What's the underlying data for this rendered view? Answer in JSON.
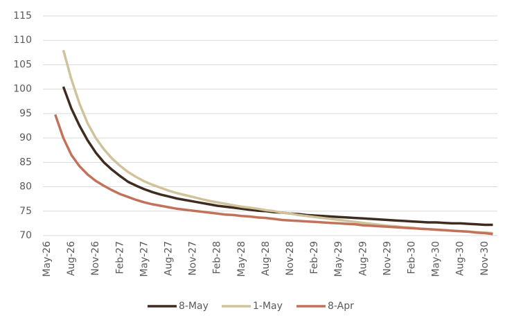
{
  "chart_data": {
    "type": "line",
    "categories": [
      "May-26",
      null,
      null,
      "Aug-26",
      null,
      null,
      "Nov-26",
      null,
      null,
      "Feb-27",
      null,
      null,
      "May-27",
      null,
      null,
      "Aug-27",
      null,
      null,
      "Nov-27",
      null,
      null,
      "Feb-28",
      null,
      null,
      "May-28",
      null,
      null,
      "Aug-28",
      null,
      null,
      "Nov-28",
      null,
      null,
      "Feb-29",
      null,
      null,
      "May-29",
      null,
      null,
      "Aug-29",
      null,
      null,
      "Nov-29",
      null,
      null,
      "Feb-30",
      null,
      null,
      "May-30",
      null,
      null,
      "Aug-30",
      null,
      null,
      "Nov-30",
      null
    ],
    "series": [
      {
        "name": "8-May",
        "color": "#3e2c20",
        "values": [
          null,
          null,
          100.5,
          96,
          92.5,
          89.5,
          87,
          85,
          83.5,
          82.2,
          81,
          80.2,
          79.5,
          78.9,
          78.4,
          78,
          77.6,
          77.3,
          77,
          76.7,
          76.4,
          76.1,
          75.9,
          75.7,
          75.5,
          75.3,
          75.1,
          75,
          74.8,
          74.7,
          74.5,
          74.4,
          74.2,
          74.1,
          74,
          73.9,
          73.8,
          73.7,
          73.6,
          73.5,
          73.4,
          73.3,
          73.2,
          73.1,
          73,
          72.9,
          72.8,
          72.7,
          72.7,
          72.6,
          72.5,
          72.5,
          72.4,
          72.3,
          72.2,
          72.2
        ]
      },
      {
        "name": "1-May",
        "color": "#d0c39c",
        "values": [
          null,
          null,
          108,
          102,
          97,
          93,
          90,
          87.7,
          85.8,
          84.3,
          83,
          82,
          81.1,
          80.4,
          79.8,
          79.2,
          78.7,
          78.3,
          77.9,
          77.5,
          77.1,
          76.8,
          76.5,
          76.2,
          75.9,
          75.7,
          75.5,
          75.2,
          75,
          74.7,
          74.5,
          74.2,
          74,
          73.8,
          73.6,
          73.4,
          73.2,
          73,
          72.8,
          72.6,
          72.4,
          72.2,
          72,
          71.9,
          71.7,
          71.6,
          71.4,
          71.3,
          71.2,
          71.1,
          71,
          70.9,
          70.8,
          70.7,
          70.6,
          70.5
        ]
      },
      {
        "name": "8-Apr",
        "color": "#c2725a",
        "values": [
          null,
          94.8,
          90,
          86.5,
          84.2,
          82.5,
          81.2,
          80.2,
          79.3,
          78.5,
          77.9,
          77.3,
          76.8,
          76.4,
          76.1,
          75.8,
          75.5,
          75.3,
          75.1,
          74.9,
          74.7,
          74.5,
          74.3,
          74.2,
          74,
          73.9,
          73.7,
          73.6,
          73.4,
          73.2,
          73.1,
          73,
          72.9,
          72.8,
          72.7,
          72.6,
          72.5,
          72.4,
          72.3,
          72.1,
          72,
          71.9,
          71.8,
          71.7,
          71.6,
          71.5,
          71.4,
          71.3,
          71.2,
          71.1,
          71,
          70.9,
          70.8,
          70.6,
          70.5,
          70.3
        ]
      }
    ],
    "ylim": [
      70,
      115
    ],
    "yticks": [
      70,
      75,
      80,
      85,
      90,
      95,
      100,
      105,
      110,
      115
    ],
    "grid": true,
    "legend": "bottom"
  }
}
